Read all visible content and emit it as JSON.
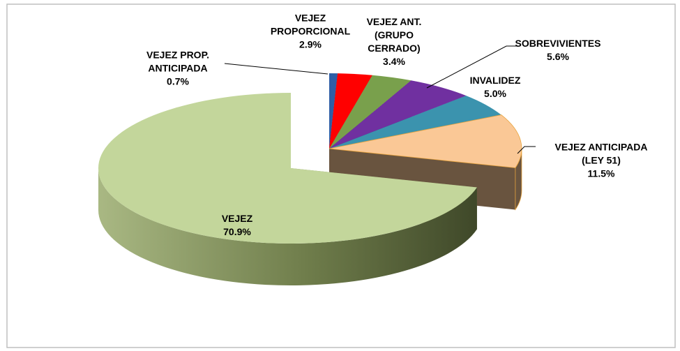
{
  "chart_data": {
    "type": "pie",
    "categories": [
      "VEJEZ PROP. ANTICIPADA",
      "VEJEZ PROPORCIONAL",
      "VEJEZ ANT. (GRUPO CERRADO)",
      "SOBREVIVIENTES",
      "INVALIDEZ",
      "VEJEZ ANTICIPADA (LEY 51)",
      "VEJEZ"
    ],
    "values": [
      0.7,
      2.9,
      3.4,
      5.6,
      5.0,
      11.5,
      70.9
    ],
    "value_labels": [
      "0.7%",
      "2.9%",
      "3.4%",
      "5.6%",
      "5.0%",
      "11.5%",
      "70.9%"
    ],
    "colors": [
      "#2f5ea6",
      "#ff0000",
      "#79a04c",
      "#7030a0",
      "#3b93ae",
      "#fac896",
      "#c3d69b"
    ]
  }
}
